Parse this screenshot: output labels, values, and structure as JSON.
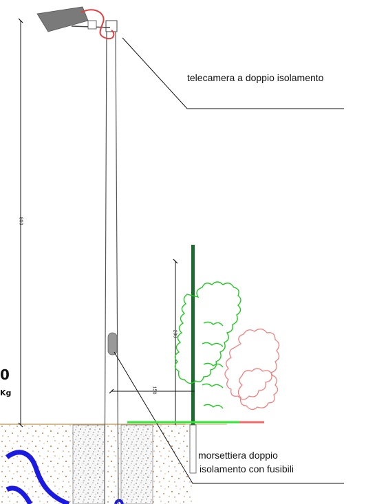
{
  "labels": {
    "camera": "telecamera a doppio isolamento",
    "terminal_line1": "morsettiera doppio",
    "terminal_line2": "isolamento con fusibili"
  },
  "fragments": {
    "left_top": "0",
    "left_bottom": "Kg"
  },
  "dimensions": {
    "pole_height": "800",
    "fence_height": "200",
    "offset": "150"
  },
  "colors": {
    "pole": "#555555",
    "cable": "#e04040",
    "fence_post": "#1c6b2e",
    "hedge_front": "#22c922",
    "hedge_back": "#f08080",
    "ground_line_green": "#33e633",
    "ground_line_red": "#f06a6a",
    "earth_line": "#c9a46a",
    "soil_dots": "#c46a2a",
    "duct": "#1a1ae0",
    "camera_body": "#7a7a7a"
  }
}
